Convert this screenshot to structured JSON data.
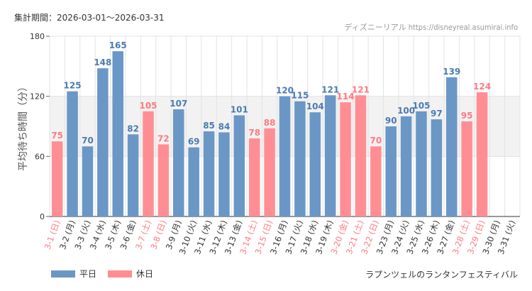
{
  "header": {
    "period_label": "集計期間：2026-03-01～2026-03-31",
    "source_label": "ディズニーリアル https://disneyreal.asumirai.info"
  },
  "legend": {
    "weekday_label": "平日",
    "holiday_label": "休日"
  },
  "footer": {
    "attraction_label": "ラプンツェルのランタンフェスティバル"
  },
  "colors": {
    "weekday": "#6a97c6",
    "holiday": "#ff8e94",
    "band": "#f2f2f2",
    "grid": "#e3e3e3"
  },
  "chart_data": {
    "type": "bar",
    "title": "",
    "ylabel": "平均待ち時間（分）",
    "xlabel": "",
    "ylim": [
      0,
      180
    ],
    "yticks": [
      0,
      60,
      120,
      180
    ],
    "shaded_band": [
      60,
      120
    ],
    "categories": [
      "3-1 (日)",
      "3-2 (月)",
      "3-3 (火)",
      "3-4 (水)",
      "3-5 (木)",
      "3-6 (金)",
      "3-7 (土)",
      "3-8 (日)",
      "3-9 (月)",
      "3-10 (火)",
      "3-11 (水)",
      "3-12 (木)",
      "3-13 (金)",
      "3-14 (土)",
      "3-15 (日)",
      "3-16 (月)",
      "3-17 (火)",
      "3-18 (水)",
      "3-19 (木)",
      "3-20 (金)",
      "3-21 (土)",
      "3-22 (日)",
      "3-23 (月)",
      "3-24 (火)",
      "3-25 (水)",
      "3-26 (木)",
      "3-27 (金)",
      "3-28 (土)",
      "3-29 (日)",
      "3-30 (月)",
      "3-31 (火)"
    ],
    "values": [
      75,
      125,
      70,
      148,
      165,
      82,
      105,
      72,
      107,
      69,
      85,
      84,
      101,
      78,
      88,
      120,
      115,
      104,
      121,
      114,
      121,
      70,
      90,
      100,
      105,
      97,
      139,
      95,
      124,
      null,
      null
    ],
    "day_type": [
      "holiday",
      "weekday",
      "weekday",
      "weekday",
      "weekday",
      "weekday",
      "holiday",
      "holiday",
      "weekday",
      "weekday",
      "weekday",
      "weekday",
      "weekday",
      "holiday",
      "holiday",
      "weekday",
      "weekday",
      "weekday",
      "weekday",
      "holiday",
      "holiday",
      "holiday",
      "weekday",
      "weekday",
      "weekday",
      "weekday",
      "weekday",
      "holiday",
      "holiday",
      "weekday",
      "weekday"
    ]
  }
}
